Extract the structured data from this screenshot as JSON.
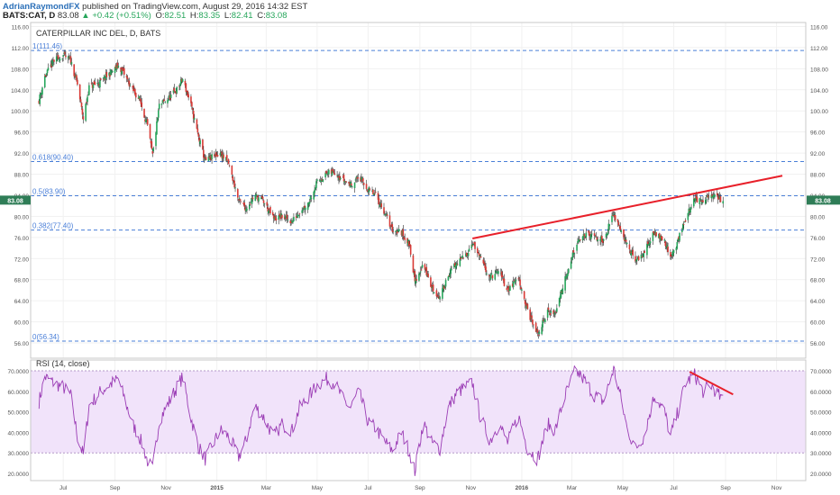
{
  "header": {
    "author": "AdrianRaymondFX",
    "published": "published on TradingView.com, August 29, 2016 14:32 EST",
    "symbol": "BATS:CAT, D",
    "last": "83.08",
    "change": "▲ +0.42 (+0.51%)",
    "o_label": "O:",
    "o_value": "82.51",
    "h_label": "H:",
    "h_value": "83.35",
    "l_label": "L:",
    "l_value": "82.41",
    "c_label": "C:",
    "c_value": "83.08"
  },
  "colors": {
    "up": "#26a65b",
    "down": "#d93a36",
    "fib": "#4a7fd8",
    "trend": "#e8202a",
    "rsi_line": "#9b3db5",
    "rsi_band": "#f1e3fa",
    "price_badge": "#2f7d57"
  },
  "chart_data": [
    {
      "type": "candlestick",
      "title": "CATERPILLAR INC DEL, D, BATS",
      "y_ticks": [
        "56.00",
        "60.00",
        "64.00",
        "68.00",
        "72.00",
        "76.00",
        "80.00",
        "84.00",
        "88.00",
        "92.00",
        "96.00",
        "100.00",
        "104.00",
        "108.00",
        "112.00",
        "116.00"
      ],
      "ylim": [
        54,
        116
      ],
      "x_ticks": [
        "Jul",
        "Sep",
        "Nov",
        "2015",
        "Mar",
        "May",
        "Jul",
        "Sep",
        "Nov",
        "2016",
        "Mar",
        "May",
        "Jul",
        "Sep",
        "Nov"
      ],
      "last_price": "83.08",
      "close_path": [
        [
          "2014-06-02",
          102.0
        ],
        [
          "2014-06-09",
          106.5
        ],
        [
          "2014-06-20",
          109.5
        ],
        [
          "2014-07-01",
          110.5
        ],
        [
          "2014-07-10",
          109.5
        ],
        [
          "2014-07-18",
          105.0
        ],
        [
          "2014-07-25",
          98.5
        ],
        [
          "2014-08-01",
          104.5
        ],
        [
          "2014-08-15",
          105.5
        ],
        [
          "2014-08-25",
          107.0
        ],
        [
          "2014-09-05",
          108.5
        ],
        [
          "2014-09-12",
          107.0
        ],
        [
          "2014-09-22",
          104.0
        ],
        [
          "2014-10-01",
          102.0
        ],
        [
          "2014-10-10",
          97.0
        ],
        [
          "2014-10-16",
          91.5
        ],
        [
          "2014-10-24",
          101.0
        ],
        [
          "2014-11-05",
          102.5
        ],
        [
          "2014-11-14",
          104.0
        ],
        [
          "2014-11-21",
          106.0
        ],
        [
          "2014-12-01",
          101.0
        ],
        [
          "2014-12-10",
          95.0
        ],
        [
          "2014-12-18",
          90.5
        ],
        [
          "2015-01-05",
          92.0
        ],
        [
          "2015-01-15",
          90.0
        ],
        [
          "2015-01-27",
          83.0
        ],
        [
          "2015-02-05",
          81.5
        ],
        [
          "2015-02-15",
          84.0
        ],
        [
          "2015-02-25",
          83.0
        ],
        [
          "2015-03-10",
          79.5
        ],
        [
          "2015-03-20",
          80.0
        ],
        [
          "2015-04-01",
          79.0
        ],
        [
          "2015-04-10",
          81.0
        ],
        [
          "2015-04-20",
          82.5
        ],
        [
          "2015-05-01",
          86.5
        ],
        [
          "2015-05-12",
          88.0
        ],
        [
          "2015-05-22",
          88.5
        ],
        [
          "2015-06-01",
          87.0
        ],
        [
          "2015-06-10",
          86.0
        ],
        [
          "2015-06-20",
          87.5
        ],
        [
          "2015-07-01",
          85.0
        ],
        [
          "2015-07-10",
          84.0
        ],
        [
          "2015-07-20",
          81.0
        ],
        [
          "2015-07-30",
          77.5
        ],
        [
          "2015-08-10",
          77.0
        ],
        [
          "2015-08-20",
          74.5
        ],
        [
          "2015-08-26",
          67.5
        ],
        [
          "2015-09-05",
          71.0
        ],
        [
          "2015-09-15",
          66.5
        ],
        [
          "2015-09-25",
          64.5
        ],
        [
          "2015-10-05",
          69.0
        ],
        [
          "2015-10-15",
          71.0
        ],
        [
          "2015-10-25",
          72.5
        ],
        [
          "2015-11-03",
          75.0
        ],
        [
          "2015-11-12",
          72.0
        ],
        [
          "2015-11-24",
          68.5
        ],
        [
          "2015-12-05",
          69.5
        ],
        [
          "2015-12-15",
          66.0
        ],
        [
          "2015-12-28",
          68.5
        ],
        [
          "2016-01-08",
          62.0
        ],
        [
          "2016-01-20",
          57.5
        ],
        [
          "2016-02-01",
          62.0
        ],
        [
          "2016-02-10",
          61.5
        ],
        [
          "2016-02-22",
          68.5
        ],
        [
          "2016-03-05",
          74.0
        ],
        [
          "2016-03-15",
          76.5
        ],
        [
          "2016-03-28",
          76.0
        ],
        [
          "2016-04-08",
          75.5
        ],
        [
          "2016-04-20",
          80.5
        ],
        [
          "2016-04-28",
          78.0
        ],
        [
          "2016-05-06",
          74.5
        ],
        [
          "2016-05-16",
          71.5
        ],
        [
          "2016-05-26",
          73.0
        ],
        [
          "2016-06-08",
          77.0
        ],
        [
          "2016-06-20",
          75.5
        ],
        [
          "2016-06-27",
          72.0
        ],
        [
          "2016-07-06",
          75.5
        ],
        [
          "2016-07-15",
          79.5
        ],
        [
          "2016-07-26",
          83.5
        ],
        [
          "2016-08-05",
          82.5
        ],
        [
          "2016-08-15",
          84.2
        ],
        [
          "2016-08-29",
          83.08
        ]
      ],
      "fib_levels": [
        {
          "label": "1(111.46)",
          "value": 111.46
        },
        {
          "label": "0.618(90.40)",
          "value": 90.4
        },
        {
          "label": "0.5(83.90)",
          "value": 83.9
        },
        {
          "label": "0.382(77.40)",
          "value": 77.4
        },
        {
          "label": "0(56.34)",
          "value": 56.34
        }
      ],
      "trendline": [
        [
          "2015-11-03",
          75.8
        ],
        [
          "2016-11-08",
          87.7
        ]
      ]
    },
    {
      "type": "line",
      "title": "RSI (14, close)",
      "y_ticks": [
        "20.0000",
        "30.0000",
        "40.0000",
        "50.0000",
        "60.0000",
        "70.0000"
      ],
      "ylim": [
        17,
        72.5
      ],
      "bands": [
        30,
        70
      ],
      "rsi_path": [
        [
          "2014-06-02",
          55
        ],
        [
          "2014-06-09",
          67
        ],
        [
          "2014-06-20",
          64
        ],
        [
          "2014-07-01",
          62
        ],
        [
          "2014-07-10",
          58
        ],
        [
          "2014-07-18",
          38
        ],
        [
          "2014-07-25",
          29
        ],
        [
          "2014-08-01",
          53
        ],
        [
          "2014-08-15",
          60
        ],
        [
          "2014-08-25",
          63
        ],
        [
          "2014-09-05",
          66
        ],
        [
          "2014-09-12",
          57
        ],
        [
          "2014-09-22",
          44
        ],
        [
          "2014-10-01",
          37
        ],
        [
          "2014-10-10",
          26
        ],
        [
          "2014-10-16",
          22
        ],
        [
          "2014-10-24",
          46
        ],
        [
          "2014-11-05",
          55
        ],
        [
          "2014-11-14",
          62
        ],
        [
          "2014-11-21",
          67
        ],
        [
          "2014-12-01",
          47
        ],
        [
          "2014-12-10",
          33
        ],
        [
          "2014-12-18",
          27
        ],
        [
          "2015-01-05",
          41
        ],
        [
          "2015-01-15",
          38
        ],
        [
          "2015-01-27",
          28
        ],
        [
          "2015-02-05",
          36
        ],
        [
          "2015-02-15",
          53
        ],
        [
          "2015-02-25",
          48
        ],
        [
          "2015-03-10",
          38
        ],
        [
          "2015-03-20",
          44
        ],
        [
          "2015-04-01",
          41
        ],
        [
          "2015-04-10",
          52
        ],
        [
          "2015-04-20",
          57
        ],
        [
          "2015-05-01",
          63
        ],
        [
          "2015-05-12",
          66
        ],
        [
          "2015-05-22",
          64
        ],
        [
          "2015-06-01",
          56
        ],
        [
          "2015-06-10",
          52
        ],
        [
          "2015-06-20",
          60
        ],
        [
          "2015-07-01",
          45
        ],
        [
          "2015-07-10",
          42
        ],
        [
          "2015-07-20",
          36
        ],
        [
          "2015-07-30",
          31
        ],
        [
          "2015-08-10",
          40
        ],
        [
          "2015-08-20",
          30
        ],
        [
          "2015-08-26",
          21
        ],
        [
          "2015-09-05",
          45
        ],
        [
          "2015-09-15",
          35
        ],
        [
          "2015-09-25",
          32
        ],
        [
          "2015-10-05",
          52
        ],
        [
          "2015-10-15",
          59
        ],
        [
          "2015-10-25",
          62
        ],
        [
          "2015-11-03",
          64
        ],
        [
          "2015-11-12",
          48
        ],
        [
          "2015-11-24",
          36
        ],
        [
          "2015-12-05",
          44
        ],
        [
          "2015-12-15",
          35
        ],
        [
          "2015-12-28",
          48
        ],
        [
          "2016-01-08",
          32
        ],
        [
          "2016-01-20",
          27
        ],
        [
          "2016-02-01",
          44
        ],
        [
          "2016-02-10",
          41
        ],
        [
          "2016-02-22",
          58
        ],
        [
          "2016-03-05",
          70
        ],
        [
          "2016-03-15",
          66
        ],
        [
          "2016-03-28",
          58
        ],
        [
          "2016-04-08",
          55
        ],
        [
          "2016-04-20",
          71
        ],
        [
          "2016-04-28",
          58
        ],
        [
          "2016-05-06",
          42
        ],
        [
          "2016-05-16",
          32
        ],
        [
          "2016-05-26",
          38
        ],
        [
          "2016-06-08",
          58
        ],
        [
          "2016-06-20",
          50
        ],
        [
          "2016-06-27",
          38
        ],
        [
          "2016-07-06",
          50
        ],
        [
          "2016-07-15",
          64
        ],
        [
          "2016-07-26",
          68
        ],
        [
          "2016-08-05",
          60
        ],
        [
          "2016-08-15",
          63
        ],
        [
          "2016-08-29",
          55
        ]
      ],
      "trendline": [
        [
          "2016-07-20",
          69.5
        ],
        [
          "2016-09-10",
          58.5
        ]
      ]
    }
  ]
}
